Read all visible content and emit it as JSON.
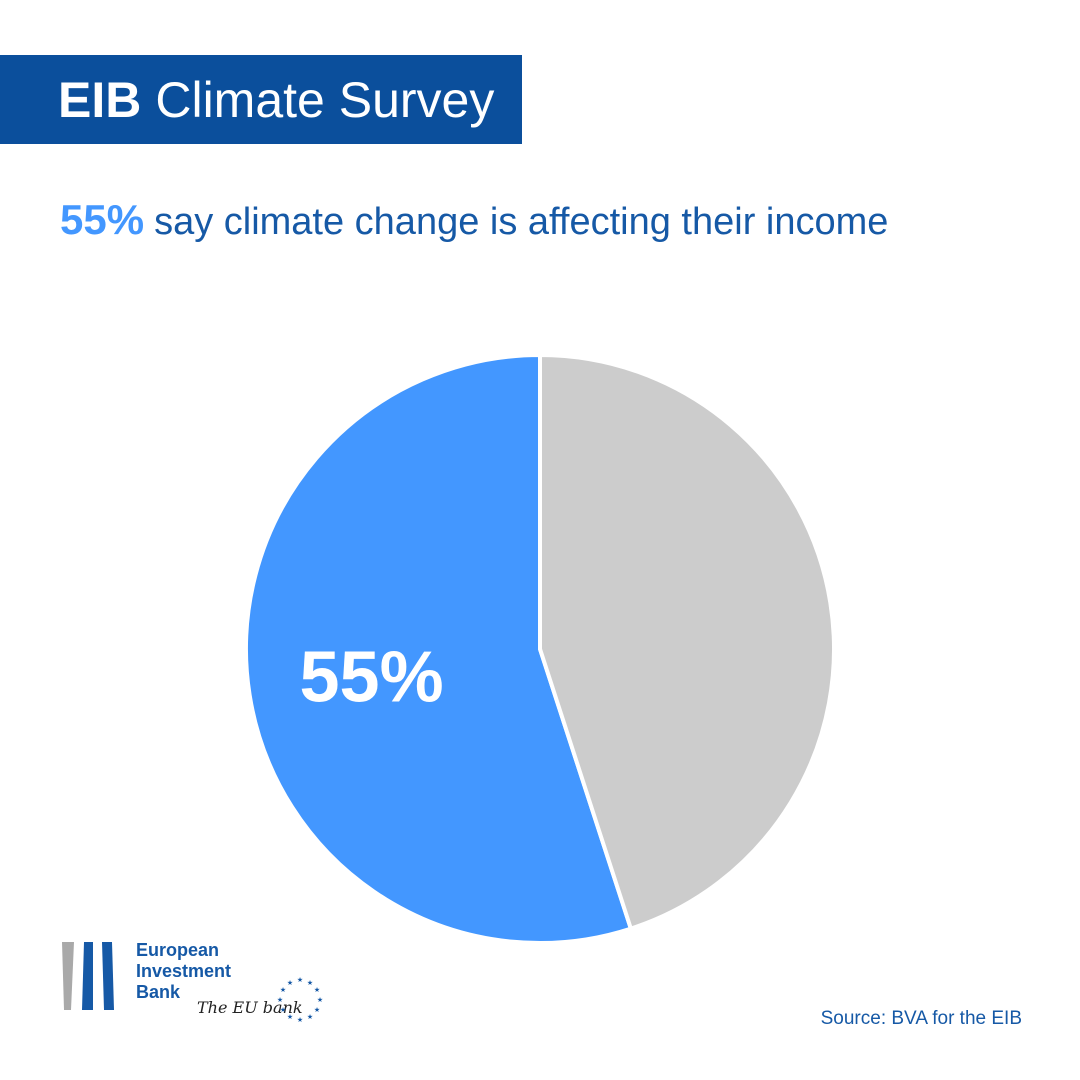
{
  "header": {
    "title_bold": "EIB",
    "title_rest": "Climate Survey"
  },
  "headline": {
    "percent": "55%",
    "text": "say climate change is affecting their income"
  },
  "chart_data": {
    "type": "pie",
    "values": [
      55,
      45
    ],
    "data_labels": [
      "55%",
      ""
    ],
    "colors": [
      "#4397ff",
      "#cccccc"
    ],
    "start_angle_deg": 0,
    "direction": "counterclockwise"
  },
  "logo": {
    "line1": "European",
    "line2": "Investment",
    "line3": "Bank",
    "tagline": "The EU bank"
  },
  "footer": {
    "source": "Source: BVA for the EIB"
  }
}
